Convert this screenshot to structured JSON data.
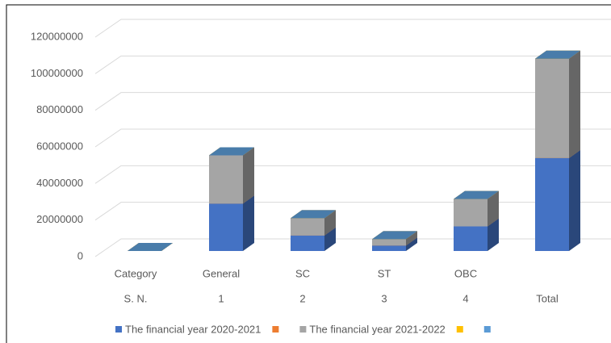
{
  "chart_data": {
    "type": "bar3d_stacked",
    "categories": [
      "Category",
      "General",
      "SC",
      "ST",
      "OBC",
      null
    ],
    "categories_level2": [
      "S. N.",
      "1",
      "2",
      "3",
      "4",
      "Total"
    ],
    "series": [
      {
        "name": "The financial year 2020-2021",
        "color": "#4472c4",
        "values": [
          0,
          26000000,
          8500000,
          3000000,
          13500000,
          51000000
        ]
      },
      {
        "color": "#ed7d31",
        "values": [
          0,
          0,
          0,
          0,
          0,
          0
        ]
      },
      {
        "name": "The financial year 2021-2022",
        "color": "#a5a5a5",
        "values": [
          0,
          26500000,
          9500000,
          3500000,
          15000000,
          54500000
        ]
      },
      {
        "color": "#ffc000",
        "values": [
          0,
          0,
          0,
          0,
          0,
          0
        ]
      },
      {
        "color": "#5b9bd5",
        "values": [
          0,
          0,
          0,
          0,
          0,
          0
        ]
      }
    ],
    "ylim": [
      0,
      120000000
    ],
    "yticks": [
      0,
      20000000,
      40000000,
      60000000,
      80000000,
      100000000,
      120000000
    ],
    "grid": true,
    "legend": "bottom"
  }
}
